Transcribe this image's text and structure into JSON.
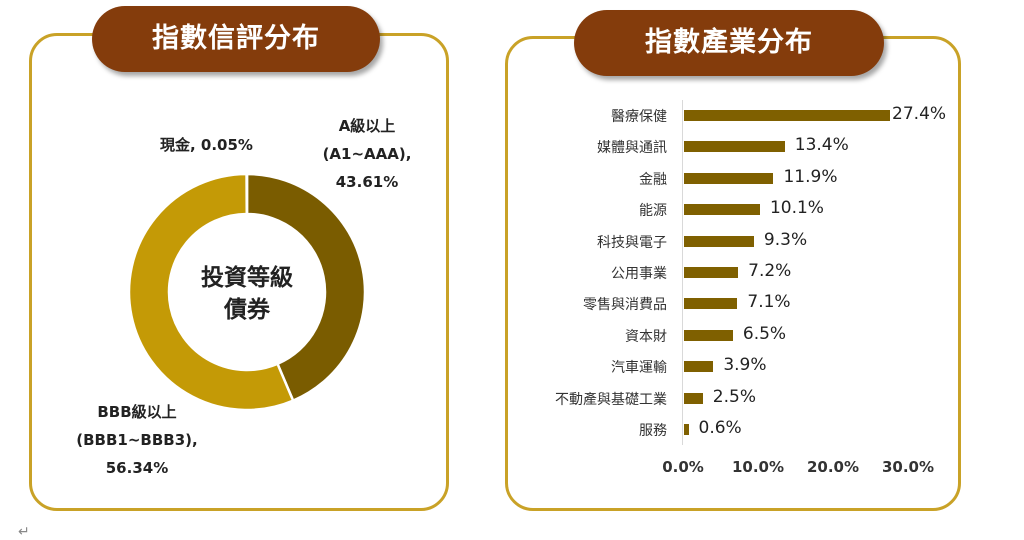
{
  "left_panel": {
    "title": "指數信評分布",
    "center_label_line1": "投資等級",
    "center_label_line2": "債券",
    "labels": {
      "cash": "現金, 0.05%",
      "a_line1": "A級以上",
      "a_line2": "(A1~AAA),",
      "a_line3": "43.61%",
      "bbb_line1": "BBB級以上",
      "bbb_line2": "(BBB1~BBB3),",
      "bbb_line3": "56.34%"
    }
  },
  "right_panel": {
    "title": "指數產業分布",
    "ticks": [
      "0.0%",
      "10.0%",
      "20.0%",
      "30.0%"
    ]
  },
  "colors": {
    "title_pill": "#843c0c",
    "panel_border": "#c9a227",
    "a_segment": "#7a5c00",
    "bbb_segment": "#c49a06",
    "bar": "#7f6000"
  },
  "footer": {
    "return_mark": "↵"
  },
  "chart_data": [
    {
      "type": "pie",
      "variant": "donut",
      "title": "指數信評分布",
      "center_text": "投資等級債券",
      "categories": [
        "A級以上 (A1~AAA)",
        "BBB級以上 (BBB1~BBB3)",
        "現金"
      ],
      "values": [
        43.61,
        56.34,
        0.05
      ],
      "unit": "%",
      "colors": [
        "#7a5c00",
        "#c49a06",
        "#ffffff"
      ]
    },
    {
      "type": "bar",
      "orientation": "horizontal",
      "title": "指數產業分布",
      "categories": [
        "醫療保健",
        "媒體與通訊",
        "金融",
        "能源",
        "科技與電子",
        "公用事業",
        "零售與消費品",
        "資本財",
        "汽車運輸",
        "不動產與基礎工業",
        "服務"
      ],
      "values": [
        27.4,
        13.4,
        11.9,
        10.1,
        9.3,
        7.2,
        7.1,
        6.5,
        3.9,
        2.5,
        0.6
      ],
      "value_labels": [
        "27.4%",
        "13.4%",
        "11.9%",
        "10.1%",
        "9.3%",
        "7.2%",
        "7.1%",
        "6.5%",
        "3.9%",
        "2.5%",
        "0.6%"
      ],
      "xlabel": "",
      "ylabel": "",
      "xlim": [
        0,
        30
      ],
      "xticks": [
        "0.0%",
        "10.0%",
        "20.0%",
        "30.0%"
      ],
      "grid": false,
      "legend": "none",
      "color": "#7f6000"
    }
  ]
}
